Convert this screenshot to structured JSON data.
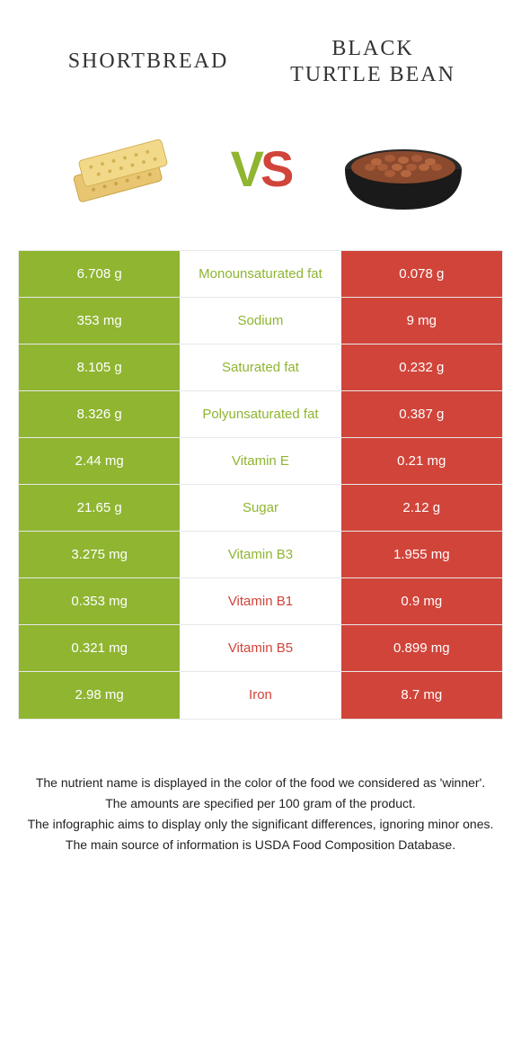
{
  "header": {
    "left_title": "SHORTBREAD",
    "right_title_line1": "BLACK",
    "right_title_line2": "TURTLE BEAN",
    "vs_v": "V",
    "vs_s": "S"
  },
  "colors": {
    "green": "#8fb531",
    "red": "#d1443a",
    "border": "#e8e8e8"
  },
  "rows": [
    {
      "left": "6.708 g",
      "label": "Monounsaturated fat",
      "right": "0.078 g",
      "winner": "green"
    },
    {
      "left": "353 mg",
      "label": "Sodium",
      "right": "9 mg",
      "winner": "green"
    },
    {
      "left": "8.105 g",
      "label": "Saturated fat",
      "right": "0.232 g",
      "winner": "green"
    },
    {
      "left": "8.326 g",
      "label": "Polyunsaturated fat",
      "right": "0.387 g",
      "winner": "green"
    },
    {
      "left": "2.44 mg",
      "label": "Vitamin E",
      "right": "0.21 mg",
      "winner": "green"
    },
    {
      "left": "21.65 g",
      "label": "Sugar",
      "right": "2.12 g",
      "winner": "green"
    },
    {
      "left": "3.275 mg",
      "label": "Vitamin B3",
      "right": "1.955 mg",
      "winner": "green"
    },
    {
      "left": "0.353 mg",
      "label": "Vitamin B1",
      "right": "0.9 mg",
      "winner": "red"
    },
    {
      "left": "0.321 mg",
      "label": "Vitamin B5",
      "right": "0.899 mg",
      "winner": "red"
    },
    {
      "left": "2.98 mg",
      "label": "Iron",
      "right": "8.7 mg",
      "winner": "red"
    }
  ],
  "footer": {
    "line1": "The nutrient name is displayed in the color of the food we considered as 'winner'.",
    "line2": "The amounts are specified per 100 gram of the product.",
    "line3": "The infographic aims to display only the significant differences, ignoring minor ones.",
    "line4": "The main source of information is USDA Food Composition Database."
  }
}
